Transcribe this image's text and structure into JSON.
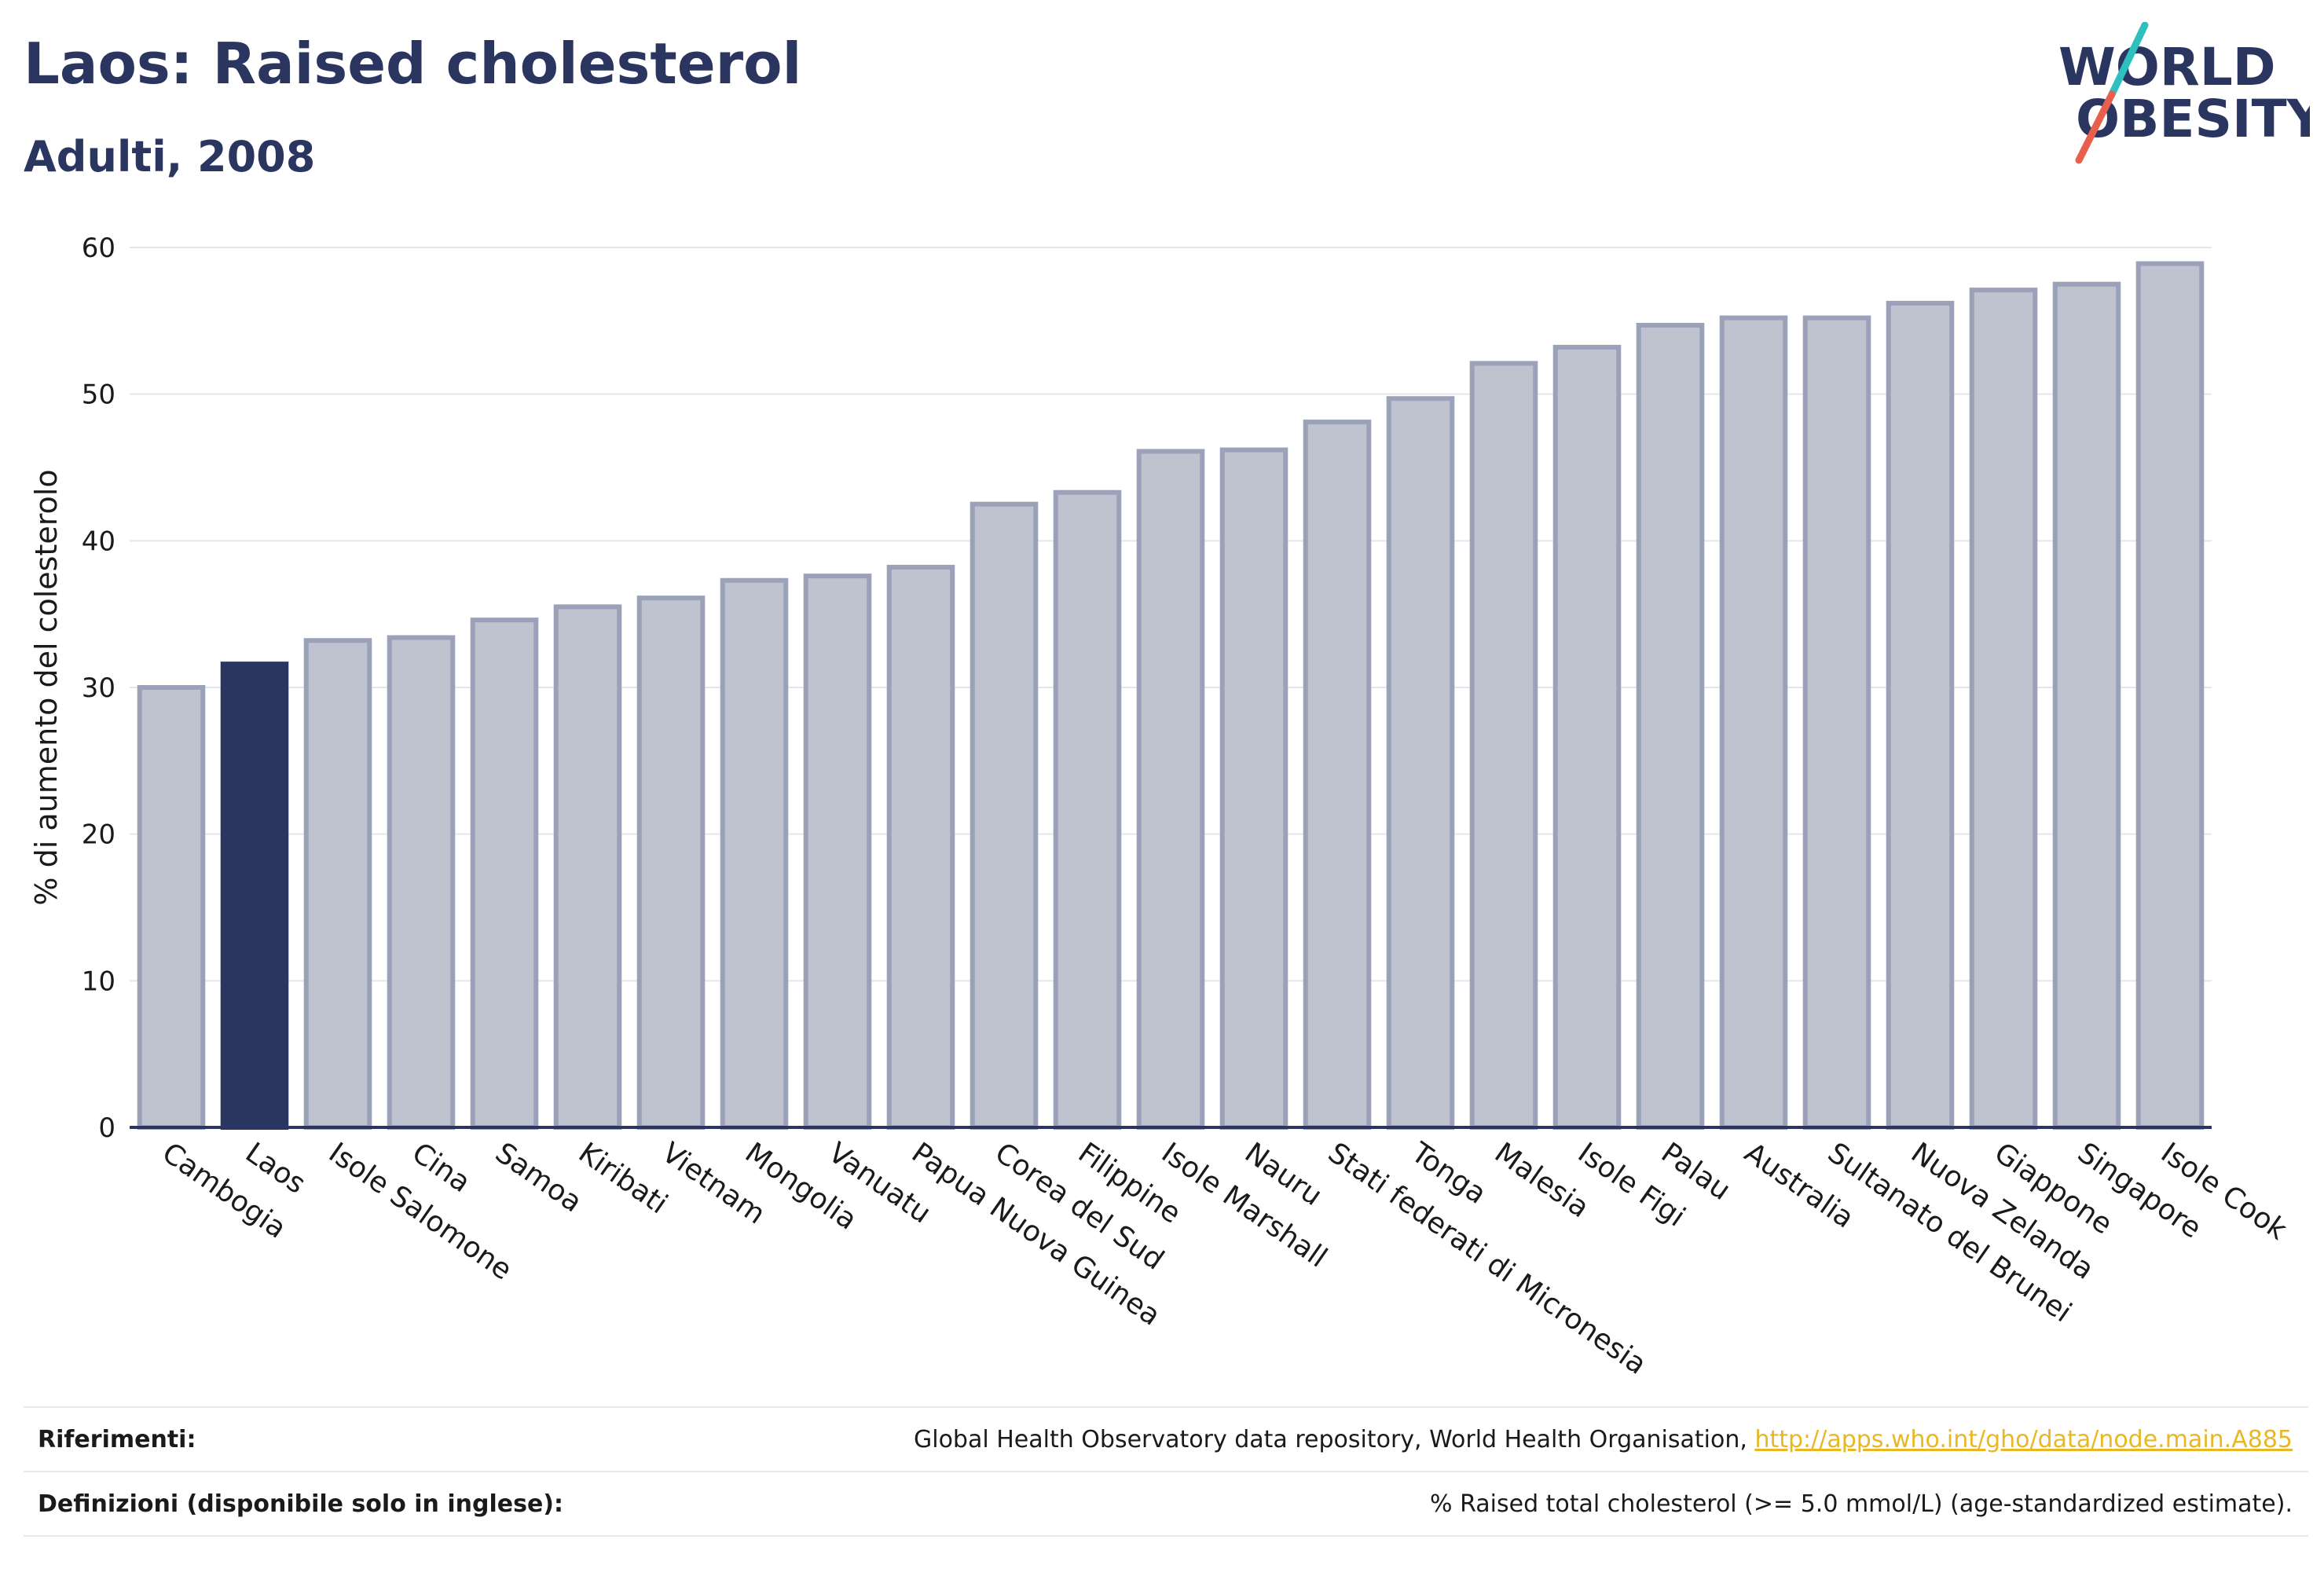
{
  "header": {
    "title": "Laos: Raised cholesterol",
    "subtitle": "Adulti, 2008"
  },
  "logo": {
    "line1": "WORLD",
    "line2": "OBESITY",
    "slash_colors": [
      "#2fbfbf",
      "#e8604c"
    ]
  },
  "colors": {
    "highlight_bar": "#2b3660",
    "default_bar_fill": "#bfc2cf",
    "default_bar_stroke": "#9aa1b8",
    "grid": "#e3e6ec",
    "axis": "#2b3660",
    "text": "#1a1a1a"
  },
  "chart_data": {
    "type": "bar",
    "ylabel": "% di aumento del colesterolo",
    "xlabel": "",
    "ylim": [
      0,
      60
    ],
    "yticks": [
      0,
      10,
      20,
      30,
      40,
      50,
      60
    ],
    "grid": true,
    "highlight": "Laos",
    "categories": [
      "Cambogia",
      "Laos",
      "Isole Salomone",
      "Cina",
      "Samoa",
      "Kiribati",
      "Vietnam",
      "Mongolia",
      "Vanuatu",
      "Papua Nuova Guinea",
      "Corea del Sud",
      "Filippine",
      "Isole Marshall",
      "Nauru",
      "Stati federati di Micronesia",
      "Tonga",
      "Malesia",
      "Isole Figi",
      "Palau",
      "Australia",
      "Sultanato del Brunei",
      "Nuova Zelanda",
      "Giappone",
      "Singapore",
      "Isole Cook"
    ],
    "values": [
      30.0,
      31.6,
      33.2,
      33.4,
      34.6,
      35.5,
      36.1,
      37.3,
      37.6,
      38.2,
      42.5,
      43.3,
      46.1,
      46.2,
      48.1,
      49.7,
      52.1,
      53.2,
      54.7,
      55.2,
      55.2,
      56.2,
      57.1,
      57.5,
      58.9
    ]
  },
  "footer": {
    "references_label": "Riferimenti:",
    "references_text": "Global Health Observatory data repository, World Health Organisation,",
    "references_link": "http://apps.who.int/gho/data/node.main.A885",
    "definitions_label": "Definizioni (disponibile solo in inglese):",
    "definitions_text": "% Raised total cholesterol (>= 5.0 mmol/L) (age-standardized estimate)."
  }
}
